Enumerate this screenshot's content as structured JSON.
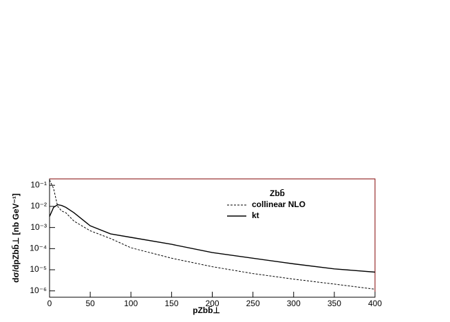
{
  "chart_data": {
    "type": "line",
    "title": "Zbb̄",
    "x_label": "pZbb̄⊥",
    "y_label": "dσ/dpZbb̄⊥ [nb GeV⁻¹]",
    "log_y": true,
    "legend": "upper right",
    "x": [
      0,
      5,
      10,
      15,
      20,
      30,
      50,
      75,
      100,
      150,
      200,
      250,
      300,
      350,
      400
    ],
    "series": [
      {
        "name": "collinear NLO",
        "color": "#000000",
        "dash": true,
        "values": [
          0.18,
          0.07,
          0.01,
          0.006,
          0.005,
          0.002,
          0.0007,
          0.0003,
          0.00011,
          3.5e-05,
          1.4e-05,
          6.6e-06,
          3.6e-06,
          2.1e-06,
          1.2e-06
        ]
      },
      {
        "name": "kt",
        "color": "#000000",
        "dash": false,
        "values": [
          0.0033,
          0.009,
          0.012,
          0.011,
          0.009,
          0.005,
          0.0012,
          0.0005,
          0.00034,
          0.00016,
          6.5e-05,
          3.5e-05,
          1.9e-05,
          1.1e-05,
          7.7e-06
        ]
      }
    ],
    "xlim": [
      0,
      400
    ],
    "xticks": [
      0,
      50,
      100,
      150,
      200,
      250,
      300,
      350,
      400
    ],
    "ylim": [
      5e-07,
      0.2
    ],
    "yticks": [
      {
        "value": 0.1,
        "label": "10⁻¹"
      },
      {
        "value": 0.01,
        "label": "10⁻²"
      },
      {
        "value": 0.001,
        "label": "10⁻³"
      },
      {
        "value": 0.0001,
        "label": "10⁻⁴"
      },
      {
        "value": 1e-05,
        "label": "10⁻⁵"
      },
      {
        "value": 1e-06,
        "label": "10⁻⁶"
      }
    ]
  }
}
